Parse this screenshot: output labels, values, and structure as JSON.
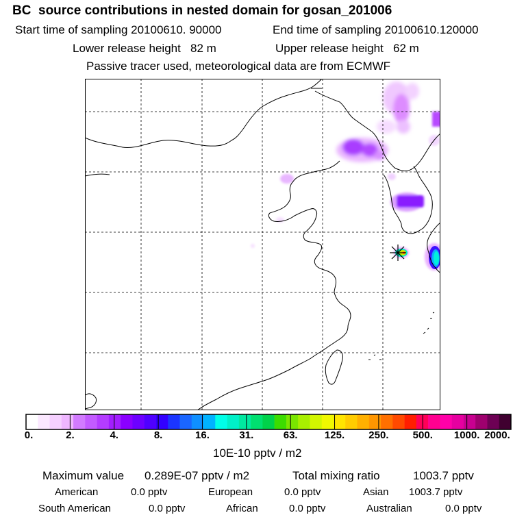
{
  "header": {
    "title": "BC  source contributions in nested domain for gosan_201006",
    "start_label": "Start time of sampling",
    "start_value": "20100610. 90000",
    "end_label": "End time of sampling",
    "end_value": "20100610.120000",
    "lower_label": "Lower release height",
    "lower_value": "82 m",
    "upper_label": "Upper release height",
    "upper_value": "62 m",
    "info": "Passive tracer used, meteorological data are from ECMWF"
  },
  "map": {
    "region": "East Asia (Eastern China, Korea, Japan)",
    "release_marker": "release-site-star",
    "colors": {
      "land_outline": "#000000",
      "grid": "#000000",
      "frame": "#000000"
    }
  },
  "colorbar": {
    "ticks": [
      "0.",
      "2.",
      "4.",
      "8.",
      "16.",
      "31.",
      "63.",
      "125.",
      "250.",
      "500.",
      "1000.",
      "2000."
    ],
    "colors": [
      "#ffffff",
      "#fbe8ff",
      "#f5d0ff",
      "#eeb6ff",
      "#d27bff",
      "#c35bff",
      "#b43cff",
      "#a21eff",
      "#8a00ff",
      "#6d00ff",
      "#4f00ff",
      "#3200ff",
      "#1b35ff",
      "#1a66ff",
      "#0f8fff",
      "#00b3ff",
      "#00ffe8",
      "#00f0c8",
      "#00e8a0",
      "#00e070",
      "#00d24a",
      "#3cdc00",
      "#7ae600",
      "#a8ef00",
      "#d2f600",
      "#f0f800",
      "#ffe500",
      "#ffcc00",
      "#ffb000",
      "#ff9600",
      "#ff7000",
      "#ff4a00",
      "#ff1e00",
      "#ff0058",
      "#ff0090",
      "#ff00a8",
      "#e600a0",
      "#c80090",
      "#9e006e",
      "#6d0054",
      "#400030"
    ],
    "units": "10E-10 pptv / m2"
  },
  "summary": {
    "max_label": "Maximum value",
    "max_value": "0.289E-07 pptv / m2",
    "total_label": "Total mixing ratio",
    "total_value": "1003.7 pptv"
  },
  "regions": [
    {
      "name": "American",
      "value": "0.0 pptv"
    },
    {
      "name": "European",
      "value": "0.0 pptv"
    },
    {
      "name": "Asian",
      "value": "1003.7 pptv"
    },
    {
      "name": "South American",
      "value": "0.0 pptv"
    },
    {
      "name": "African",
      "value": "0.0 pptv"
    },
    {
      "name": "Australian",
      "value": "0.0 pptv"
    }
  ]
}
